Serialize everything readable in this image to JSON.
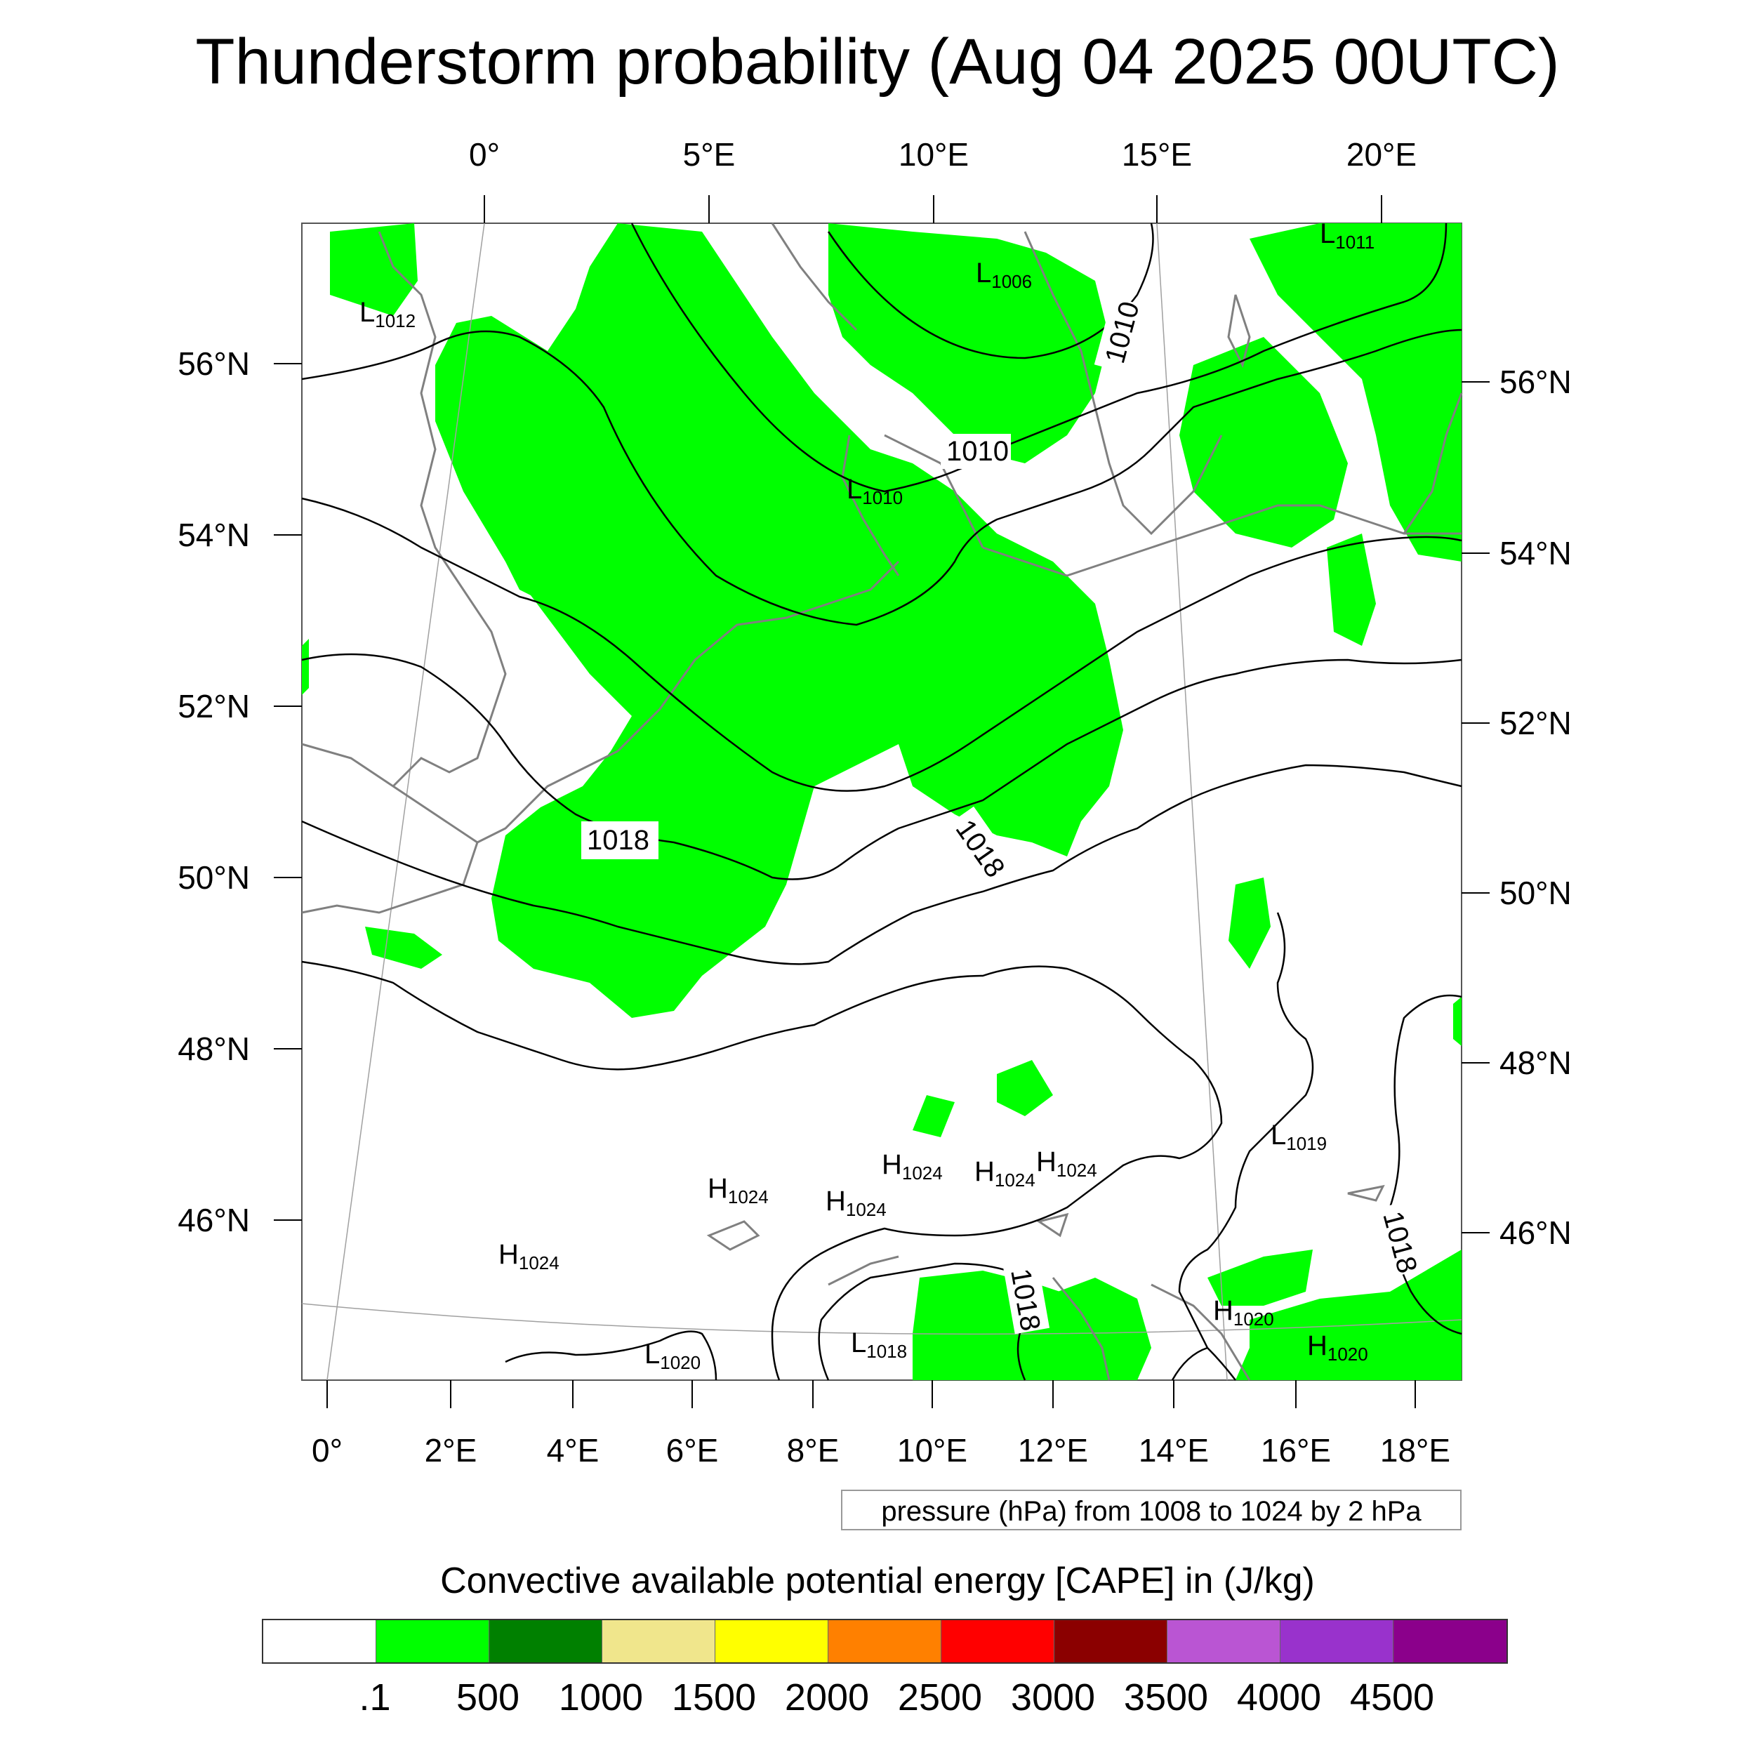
{
  "title": "Thunderstorm probability (Aug 04 2025 00UTC)",
  "map": {
    "top_lon_labels": [
      "0°",
      "5°E",
      "10°E",
      "15°E",
      "20°E"
    ],
    "bottom_lon_labels": [
      "0°",
      "2°E",
      "4°E",
      "6°E",
      "8°E",
      "10°E",
      "12°E",
      "14°E",
      "16°E",
      "18°E"
    ],
    "left_lat_labels": [
      "56°N",
      "54°N",
      "52°N",
      "50°N",
      "48°N",
      "46°N"
    ],
    "right_lat_labels": [
      "56°N",
      "54°N",
      "52°N",
      "50°N",
      "48°N",
      "46°N"
    ],
    "colors": {
      "cape_fill": "#00ff00",
      "coastline": "#808080",
      "isobar": "#000000",
      "graticule": "#a0a0a0"
    },
    "pressure_centers": [
      {
        "letter": "L",
        "value": "1012"
      },
      {
        "letter": "L",
        "value": "1006"
      },
      {
        "letter": "L",
        "value": "1011"
      },
      {
        "letter": "L",
        "value": "1010"
      },
      {
        "letter": "L",
        "value": "1019"
      },
      {
        "letter": "L",
        "value": "1020"
      },
      {
        "letter": "L",
        "value": "1018"
      },
      {
        "letter": "H",
        "value": "1024"
      },
      {
        "letter": "H",
        "value": "1024"
      },
      {
        "letter": "H",
        "value": "1024"
      },
      {
        "letter": "H",
        "value": "1024"
      },
      {
        "letter": "H",
        "value": "1024"
      },
      {
        "letter": "H",
        "value": "1024"
      },
      {
        "letter": "H",
        "value": "1020"
      },
      {
        "letter": "H",
        "value": "1020"
      }
    ],
    "isobar_labels": [
      "1010",
      "1010",
      "1018",
      "1018",
      "1018",
      "1018"
    ]
  },
  "info_box": "pressure (hPa) from 1008 to 1024 by 2 hPa",
  "colorbar": {
    "title": "Convective available potential energy [CAPE] in (J/kg)",
    "colors": [
      "#ffffff",
      "#00ff00",
      "#008000",
      "#f0e68c",
      "#ffff00",
      "#ff8000",
      "#ff0000",
      "#8b0000",
      "#ba55d3",
      "#9932cc",
      "#8b008b"
    ],
    "labels": [
      ".1",
      "500",
      "1000",
      "1500",
      "2000",
      "2500",
      "3000",
      "3500",
      "4000",
      "4500"
    ]
  }
}
